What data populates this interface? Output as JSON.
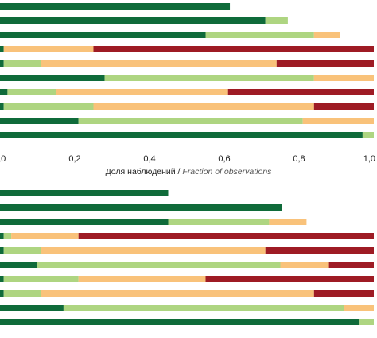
{
  "palette": {
    "dark_green": "#0f6b3a",
    "light_green": "#aed581",
    "orange": "#f9c27a",
    "dark_red": "#9e1b24"
  },
  "chart_data": [
    {
      "type": "bar",
      "orientation": "horizontal",
      "stacked": true,
      "xlim": [
        0,
        1
      ],
      "xticks": [
        "0,0",
        "0,2",
        "0,4",
        "0,6",
        "0,8",
        "1,0"
      ],
      "xlabel_main": "Доля наблюдений",
      "xlabel_separator": " / ",
      "xlabel_translation": "Fraction of observations",
      "bars": [
        [
          0.615,
          0,
          0,
          0
        ],
        [
          0.71,
          0.06,
          0,
          0
        ],
        [
          0.55,
          0.29,
          0.07,
          0
        ],
        [
          0.01,
          0,
          0.24,
          0.75
        ],
        [
          0.01,
          0.1,
          0.63,
          0.26
        ],
        [
          0.28,
          0.56,
          0.16,
          0
        ],
        [
          0.02,
          0.13,
          0.46,
          0.39
        ],
        [
          0.01,
          0.24,
          0.59,
          0.16
        ],
        [
          0.21,
          0.6,
          0.19,
          0
        ],
        [
          0.97,
          0.03,
          0,
          0
        ]
      ]
    },
    {
      "type": "bar",
      "orientation": "horizontal",
      "stacked": true,
      "xlim": [
        0,
        1
      ],
      "bars": [
        [
          0.45,
          0,
          0,
          0
        ],
        [
          0.755,
          0,
          0,
          0
        ],
        [
          0.45,
          0.27,
          0.1,
          0
        ],
        [
          0.01,
          0.02,
          0.18,
          0.79
        ],
        [
          0.01,
          0.1,
          0.6,
          0.29
        ],
        [
          0.1,
          0.65,
          0.13,
          0.12
        ],
        [
          0.01,
          0.2,
          0.34,
          0.45
        ],
        [
          0.01,
          0.1,
          0.73,
          0.16
        ],
        [
          0.17,
          0.75,
          0.08,
          0
        ],
        [
          0.96,
          0.04,
          0,
          0
        ]
      ]
    }
  ]
}
